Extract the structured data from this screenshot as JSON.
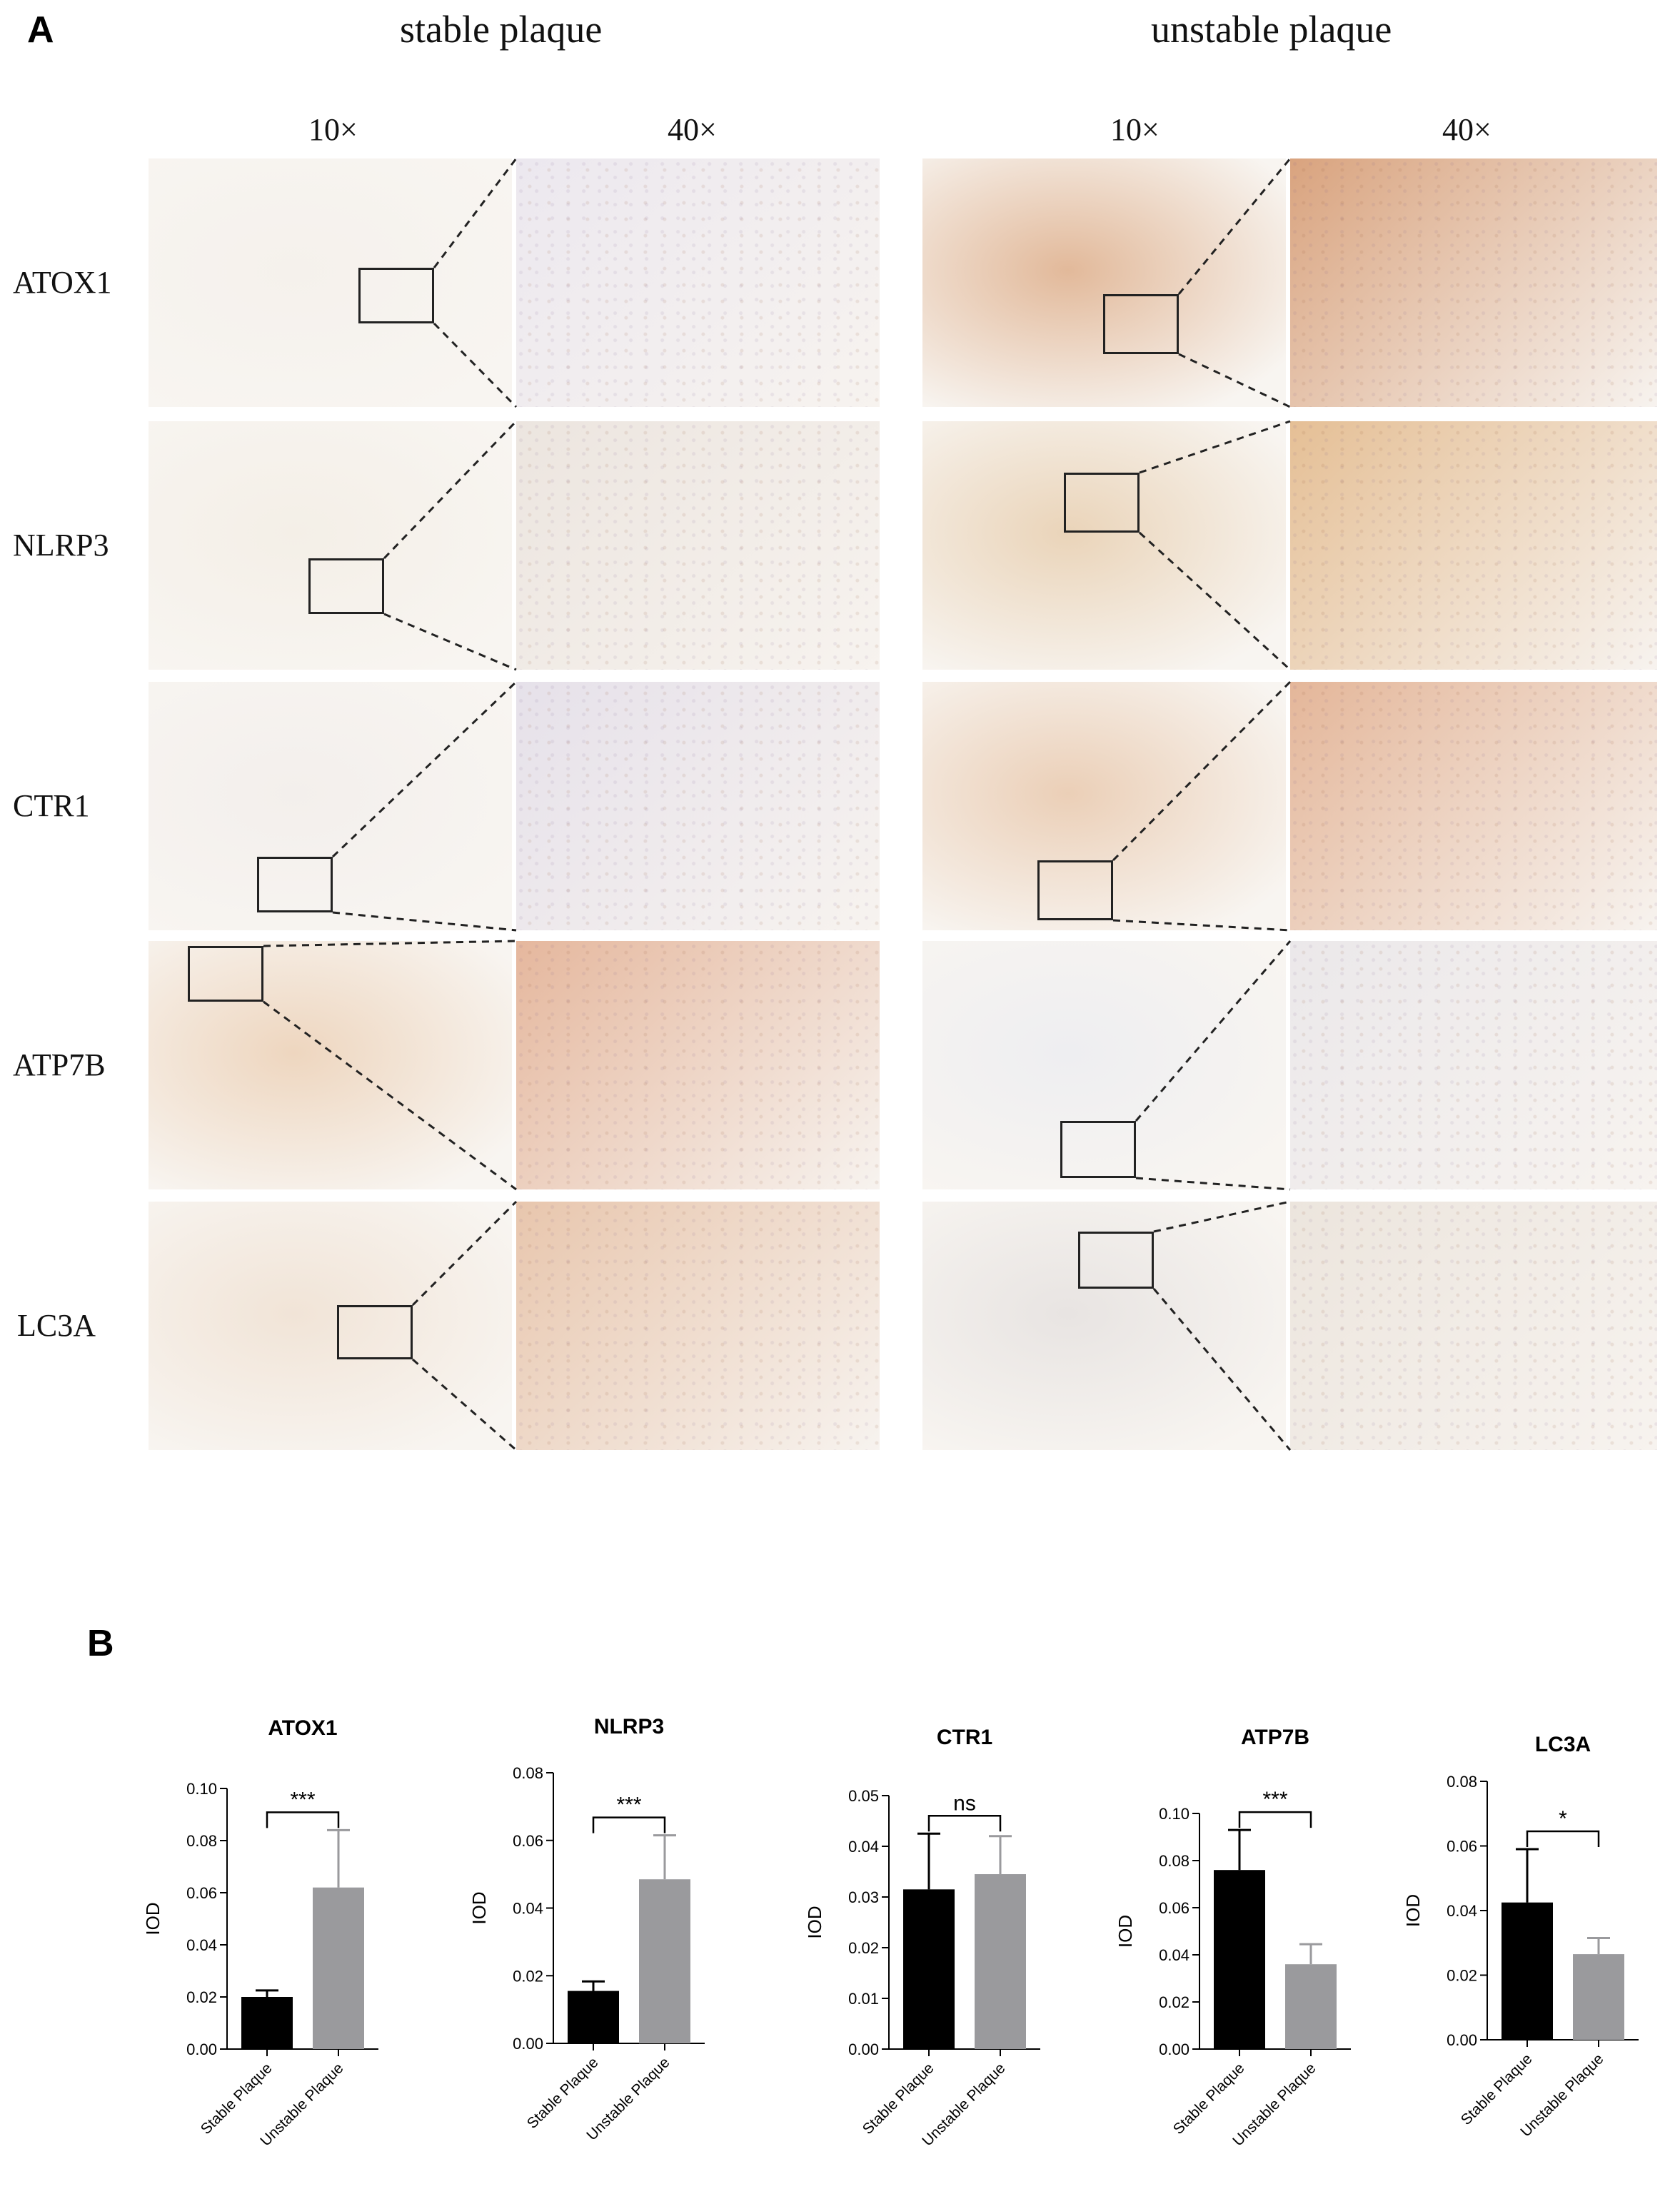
{
  "panel_a": {
    "letter": "A",
    "groups": [
      {
        "title": "stable plaque",
        "mag_low": "10×",
        "mag_high": "40×"
      },
      {
        "title": "unstable plaque",
        "mag_low": "10×",
        "mag_high": "40×"
      }
    ],
    "rows": [
      {
        "label": "ATOX1",
        "stable_low": "#f5f1ec",
        "stable_high": "#ece8ef",
        "unstable_low": "#e2b99a",
        "unstable_high": "#d9a37e"
      },
      {
        "label": "NLRP3",
        "stable_low": "#f4efe7",
        "stable_high": "#ece5df",
        "unstable_low": "#ead4b9",
        "unstable_high": "#e5bf95"
      },
      {
        "label": "CTR1",
        "stable_low": "#f3efec",
        "stable_high": "#e6e1ea",
        "unstable_low": "#ebcfb7",
        "unstable_high": "#e4b699"
      },
      {
        "label": "ATP7B",
        "stable_low": "#eed6bf",
        "stable_high": "#e5b79d",
        "unstable_low": "#eeeef1",
        "unstable_high": "#ebe8ea"
      },
      {
        "label": "LC3A",
        "stable_low": "#f1e4d7",
        "stable_high": "#e8c6ad",
        "unstable_low": "#e8e4e2",
        "unstable_high": "#ece5dd"
      }
    ]
  },
  "panel_b": {
    "letter": "B",
    "bar_colors": [
      "#000000",
      "#9a9a9d"
    ]
  },
  "chart_data": [
    {
      "type": "bar",
      "title": "ATOX1",
      "ylabel": "IOD",
      "categories": [
        "Stable Plaque",
        "Unstable Plaque"
      ],
      "values": [
        0.02,
        0.062
      ],
      "errors": [
        0.0025,
        0.022
      ],
      "ylim": [
        0,
        0.1
      ],
      "yticks": [
        "0.00",
        "0.02",
        "0.04",
        "0.06",
        "0.08",
        "0.10"
      ],
      "significance": "***"
    },
    {
      "type": "bar",
      "title": "NLRP3",
      "ylabel": "IOD",
      "categories": [
        "Stable Plaque",
        "Unstable Plaque"
      ],
      "values": [
        0.0155,
        0.0485
      ],
      "errors": [
        0.0028,
        0.013
      ],
      "ylim": [
        0,
        0.08
      ],
      "yticks": [
        "0.00",
        "0.02",
        "0.04",
        "0.06",
        "0.08"
      ],
      "significance": "***"
    },
    {
      "type": "bar",
      "title": "CTR1",
      "ylabel": "IOD",
      "categories": [
        "Stable Plaque",
        "Unstable Plaque"
      ],
      "values": [
        0.0315,
        0.0345
      ],
      "errors": [
        0.011,
        0.0075
      ],
      "ylim": [
        0,
        0.05
      ],
      "yticks": [
        "0.00",
        "0.01",
        "0.02",
        "0.03",
        "0.04",
        "0.05"
      ],
      "significance": "ns"
    },
    {
      "type": "bar",
      "title": "ATP7B",
      "ylabel": "IOD",
      "categories": [
        "Stable Plaque",
        "Unstable Plaque"
      ],
      "values": [
        0.076,
        0.036
      ],
      "errors": [
        0.017,
        0.0085
      ],
      "ylim": [
        0,
        0.1
      ],
      "yticks": [
        "0.00",
        "0.02",
        "0.04",
        "0.06",
        "0.08",
        "0.10"
      ],
      "significance": "***"
    },
    {
      "type": "bar",
      "title": "LC3A",
      "ylabel": "IOD",
      "categories": [
        "Stable Plaque",
        "Unstable Plaque"
      ],
      "values": [
        0.0425,
        0.0265
      ],
      "errors": [
        0.0165,
        0.005
      ],
      "ylim": [
        0,
        0.08
      ],
      "yticks": [
        "0.00",
        "0.02",
        "0.04",
        "0.06",
        "0.08"
      ],
      "significance": "*"
    }
  ]
}
